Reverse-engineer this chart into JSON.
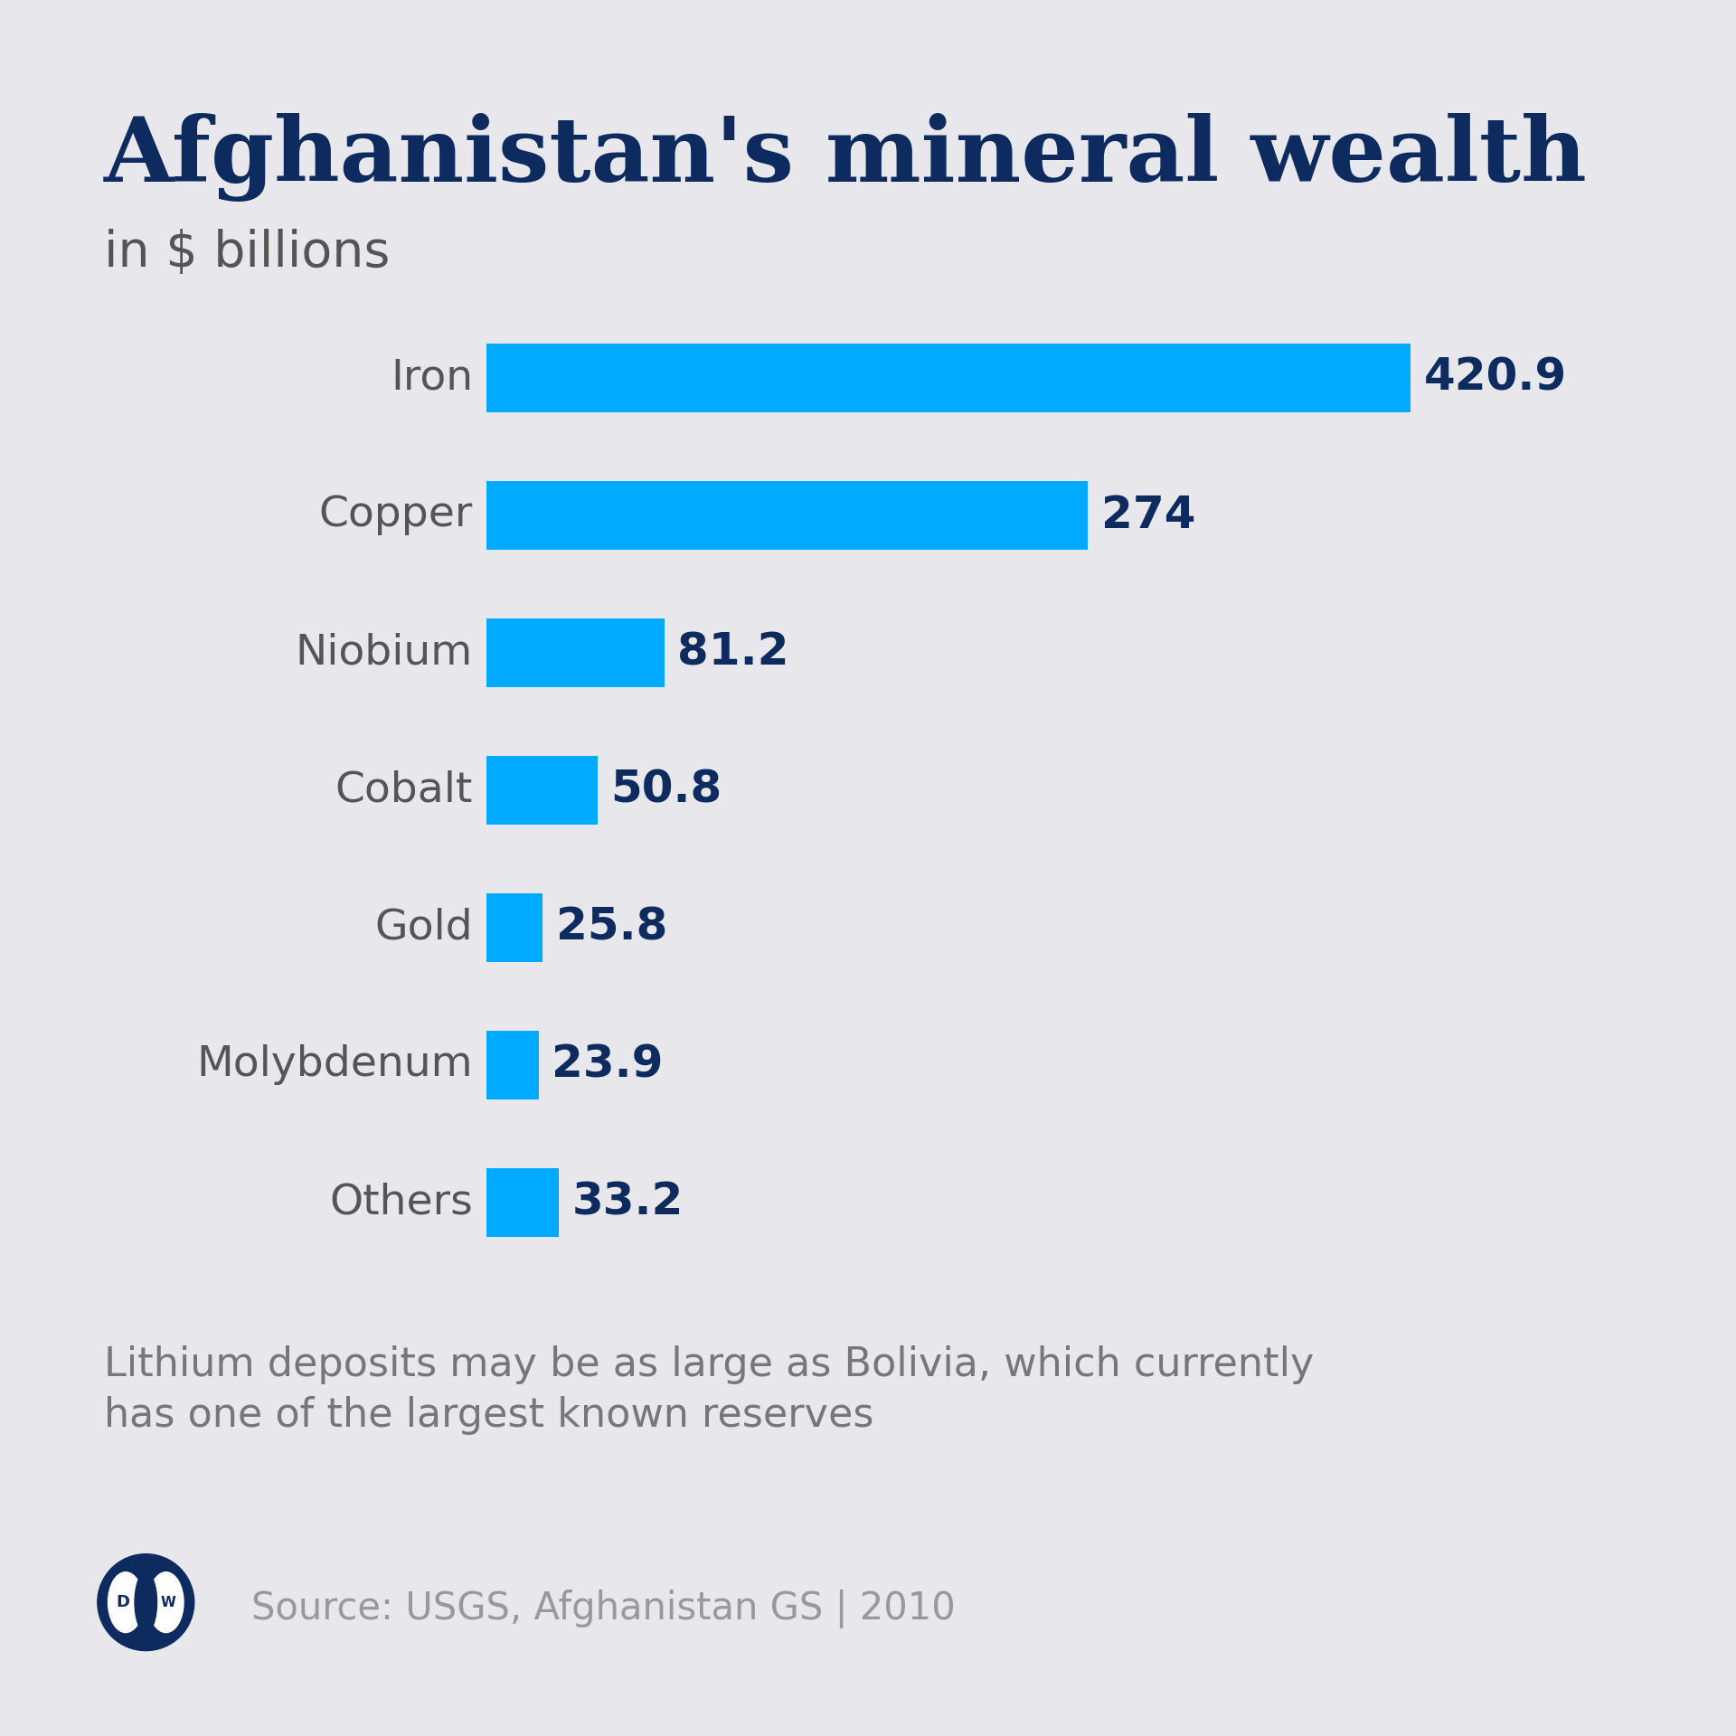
{
  "title": "Afghanistan's mineral wealth",
  "subtitle": "in $ billions",
  "categories": [
    "Iron",
    "Copper",
    "Niobium",
    "Cobalt",
    "Gold",
    "Molybdenum",
    "Others"
  ],
  "values": [
    420.9,
    274.0,
    81.2,
    50.8,
    25.8,
    23.9,
    33.2
  ],
  "labels": [
    "420.9",
    "274",
    "81.2",
    "50.8",
    "25.8",
    "23.9",
    "33.2"
  ],
  "bar_color": "#00AAFF",
  "background_color": "#E8E8EC",
  "title_color": "#0D2B5E",
  "subtitle_color": "#555555",
  "label_color": "#0D2B5E",
  "category_color": "#555555",
  "footnote_line1": "Lithium deposits may be as large as Bolivia, which currently",
  "footnote_line2": "has one of the largest known reserves",
  "footnote_color": "#777777",
  "source_text": "Source: USGS, Afghanistan GS | 2010",
  "source_color": "#999999",
  "dw_logo_color": "#0D2B5E",
  "bar_max": 420.9
}
